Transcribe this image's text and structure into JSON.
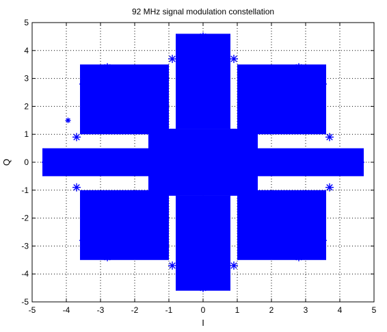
{
  "chart_data": {
    "type": "scatter",
    "title": "92 MHz signal modulation constellation",
    "xlabel": "I",
    "ylabel": "Q",
    "xlim": [
      -5,
      5
    ],
    "ylim": [
      -5,
      5
    ],
    "xticks": [
      "-5",
      "-4",
      "-3",
      "-2",
      "-1",
      "0",
      "1",
      "2",
      "3",
      "4",
      "5"
    ],
    "yticks": [
      "-5",
      "-4",
      "-3",
      "-2",
      "-1",
      "0",
      "1",
      "2",
      "3",
      "4",
      "5"
    ],
    "grid": true,
    "grid_style": "dotted",
    "marker": "*",
    "color": "#0000ff",
    "series": [
      {
        "approximate_point_clusters": [
          {
            "region": "center square",
            "points": [
              [
                -1.6,
                -1.2
              ],
              [
                1.6,
                1.2
              ]
            ]
          },
          {
            "region": "top arm",
            "points": [
              [
                -0.8,
                1.2
              ],
              [
                0.8,
                4.6
              ]
            ]
          },
          {
            "region": "bottom arm",
            "points": [
              [
                -0.8,
                -4.6
              ],
              [
                0.8,
                -1.2
              ]
            ]
          },
          {
            "region": "left arm",
            "points": [
              [
                -4.7,
                -0.5
              ],
              [
                -1.2,
                0.5
              ]
            ]
          },
          {
            "region": "right arm",
            "points": [
              [
                1.2,
                -0.5
              ],
              [
                4.7,
                0.5
              ]
            ]
          },
          {
            "region": "upper-left arm",
            "points": [
              [
                -3.6,
                1.0
              ],
              [
                -1.0,
                3.5
              ]
            ]
          },
          {
            "region": "upper-right arm",
            "points": [
              [
                1.0,
                1.0
              ],
              [
                3.6,
                3.5
              ]
            ]
          },
          {
            "region": "lower-left arm",
            "points": [
              [
                -3.6,
                -3.5
              ],
              [
                -1.0,
                -1.0
              ]
            ]
          },
          {
            "region": "lower-right arm",
            "points": [
              [
                1.0,
                -3.5
              ],
              [
                3.6,
                -1.0
              ]
            ]
          }
        ],
        "outlier": [
          -3.95,
          1.5
        ]
      }
    ]
  }
}
